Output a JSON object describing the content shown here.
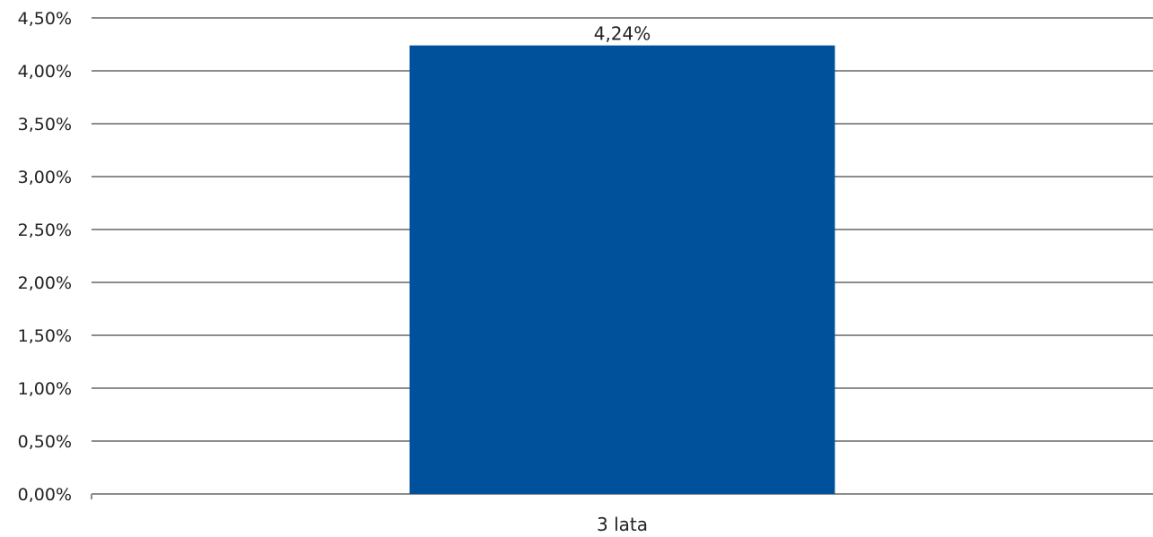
{
  "chart_data": {
    "type": "bar",
    "categories": [
      "3 lata"
    ],
    "values": [
      4.24
    ],
    "value_labels": [
      "4,24%"
    ],
    "title": "",
    "xlabel": "",
    "ylabel": "",
    "ylim": [
      0,
      4.5
    ],
    "y_ticks": [
      {
        "value": 0.0,
        "label": "0,00%"
      },
      {
        "value": 0.5,
        "label": "0,50%"
      },
      {
        "value": 1.0,
        "label": "1,00%"
      },
      {
        "value": 1.5,
        "label": "1,50%"
      },
      {
        "value": 2.0,
        "label": "2,00%"
      },
      {
        "value": 2.5,
        "label": "2,50%"
      },
      {
        "value": 3.0,
        "label": "3,00%"
      },
      {
        "value": 3.5,
        "label": "3,50%"
      },
      {
        "value": 4.0,
        "label": "4,00%"
      },
      {
        "value": 4.5,
        "label": "4,50%"
      }
    ],
    "grid": true,
    "legend": "none",
    "colors": {
      "bar": "#00519C",
      "grid": "#8C8C8C",
      "text": "#222222"
    }
  }
}
